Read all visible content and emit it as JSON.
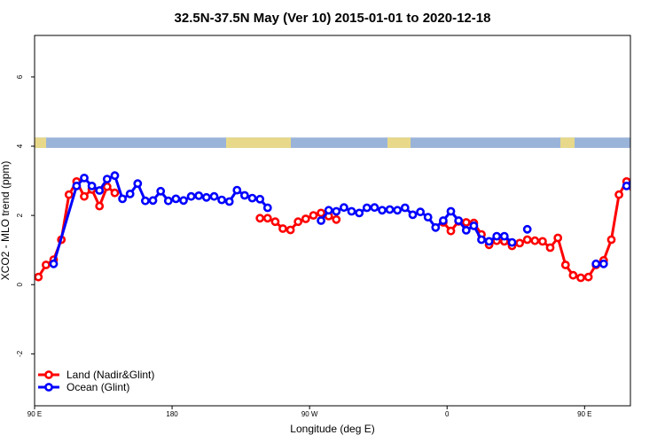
{
  "chart_data": {
    "type": "line",
    "title": "32.5N-37.5N May (Ver 10)   2015-01-01 to 2020-12-18",
    "xlabel": "Longitude (deg E)",
    "ylabel": "XCO2 - MLO trend (ppm)",
    "xlim": [
      90,
      480
    ],
    "ylim": [
      -3.5,
      7.2
    ],
    "x_ticks": [
      {
        "value": 90,
        "label": "90 E"
      },
      {
        "value": 180,
        "label": "180"
      },
      {
        "value": 270,
        "label": "90 W"
      },
      {
        "value": 360,
        "label": "0"
      },
      {
        "value": 450,
        "label": "90 E"
      },
      {
        "value": 540,
        "label": "180"
      }
    ],
    "y_ticks": [
      {
        "value": -2,
        "label": "-2"
      },
      {
        "value": 0,
        "label": "0"
      },
      {
        "value": 2,
        "label": "2"
      },
      {
        "value": 4,
        "label": "4"
      },
      {
        "value": 6,
        "label": "6"
      }
    ],
    "land_ocean_strip": {
      "y_range": [
        3.95,
        4.25
      ],
      "land_color": "#e8d98a",
      "ocean_color": "#9ab3d9"
    },
    "legend": {
      "position": "bottom-left",
      "entries": [
        {
          "name": "Land (Nadir&Glint)",
          "color": "#ff0000"
        },
        {
          "name": "Ocean (Glint)",
          "color": "#0000ff"
        }
      ]
    },
    "series": [
      {
        "name": "Land (Nadir&Glint)",
        "color": "#ff0000",
        "segments": [
          {
            "x": [
              92.5,
              97.5,
              102.5,
              107.5,
              112.5,
              117.5,
              122.5,
              127.5,
              132.5,
              137.5,
              142.5
            ],
            "y": [
              0.22,
              0.57,
              0.72,
              1.3,
              2.6,
              2.98,
              2.55,
              2.75,
              2.27,
              2.83,
              2.65
            ]
          },
          {
            "x": [
              237.5,
              242.5,
              247.5,
              252.5,
              257.5,
              262.5,
              267.5,
              272.5,
              277.5,
              282.5,
              287.5
            ],
            "y": [
              1.92,
              1.92,
              1.82,
              1.62,
              1.58,
              1.82,
              1.9,
              2.0,
              2.07,
              1.98,
              1.88
            ]
          },
          {
            "x": [
              357.5,
              362.5,
              367.5,
              372.5,
              377.5,
              382.5,
              387.5,
              392.5,
              397.5,
              402.5,
              407.5,
              412.5,
              417.5,
              422.5,
              427.5,
              432.5,
              437.5,
              442.5,
              447.5,
              452.5,
              457.5,
              462.5,
              467.5,
              472.5,
              477.5,
              482.5,
              487.5,
              492.5,
              497.5,
              502.5,
              507.5,
              512.5
            ],
            "y": [
              1.8,
              1.55,
              1.83,
              1.8,
              1.78,
              1.45,
              1.15,
              1.27,
              1.25,
              1.12,
              1.2,
              1.3,
              1.27,
              1.25,
              1.07,
              1.35,
              0.57,
              0.27,
              0.2,
              0.22,
              0.57,
              0.7,
              1.3,
              2.6,
              2.98,
              2.55,
              2.75,
              2.27,
              2.83,
              2.65,
              2.75,
              2.6
            ]
          }
        ]
      },
      {
        "name": "Ocean (Glint)",
        "color": "#0000ff",
        "segments": [
          {
            "x": [
              102.5,
              117.5,
              122.5,
              127.5,
              132.5,
              137.5,
              142.5,
              147.5,
              152.5,
              157.5,
              162.5,
              167.5,
              172.5,
              177.5,
              182.5,
              187.5,
              192.5,
              197.5,
              202.5,
              207.5,
              212.5,
              217.5,
              222.5,
              227.5,
              232.5,
              237.5,
              242.5
            ],
            "y": [
              0.6,
              2.85,
              3.08,
              2.85,
              2.72,
              3.05,
              3.15,
              2.48,
              2.62,
              2.92,
              2.42,
              2.43,
              2.7,
              2.42,
              2.48,
              2.43,
              2.55,
              2.57,
              2.52,
              2.55,
              2.45,
              2.4,
              2.73,
              2.58,
              2.5,
              2.47,
              2.22
            ]
          },
          {
            "x": [
              277.5,
              282.5,
              287.5,
              292.5,
              297.5,
              302.5,
              307.5,
              312.5,
              317.5,
              322.5,
              327.5,
              332.5,
              337.5,
              342.5,
              347.5,
              352.5,
              357.5,
              362.5,
              367.5,
              372.5,
              377.5,
              382.5,
              387.5,
              392.5,
              397.5,
              402.5
            ],
            "y": [
              1.85,
              2.15,
              2.12,
              2.23,
              2.12,
              2.07,
              2.22,
              2.23,
              2.15,
              2.17,
              2.15,
              2.22,
              2.02,
              2.1,
              1.95,
              1.65,
              1.85,
              2.12,
              1.85,
              1.57,
              1.7,
              1.3,
              1.25,
              1.4,
              1.4,
              1.22
            ]
          },
          {
            "x": [
              457.5,
              462.5
            ],
            "y": [
              0.6,
              0.6
            ]
          },
          {
            "x": [
              412.5
            ],
            "y": [
              1.6
            ]
          },
          {
            "x": [
              477.5,
              482.5,
              487.5,
              492.5,
              497.5,
              502.5,
              507.5,
              512.5,
              517.5,
              522.5,
              527.5,
              532.5,
              537.5
            ],
            "y": [
              2.85,
              3.08,
              2.85,
              2.72,
              3.05,
              3.15,
              2.48,
              2.62,
              2.92,
              2.42,
              2.43,
              2.7,
              2.42
            ]
          }
        ]
      }
    ]
  }
}
